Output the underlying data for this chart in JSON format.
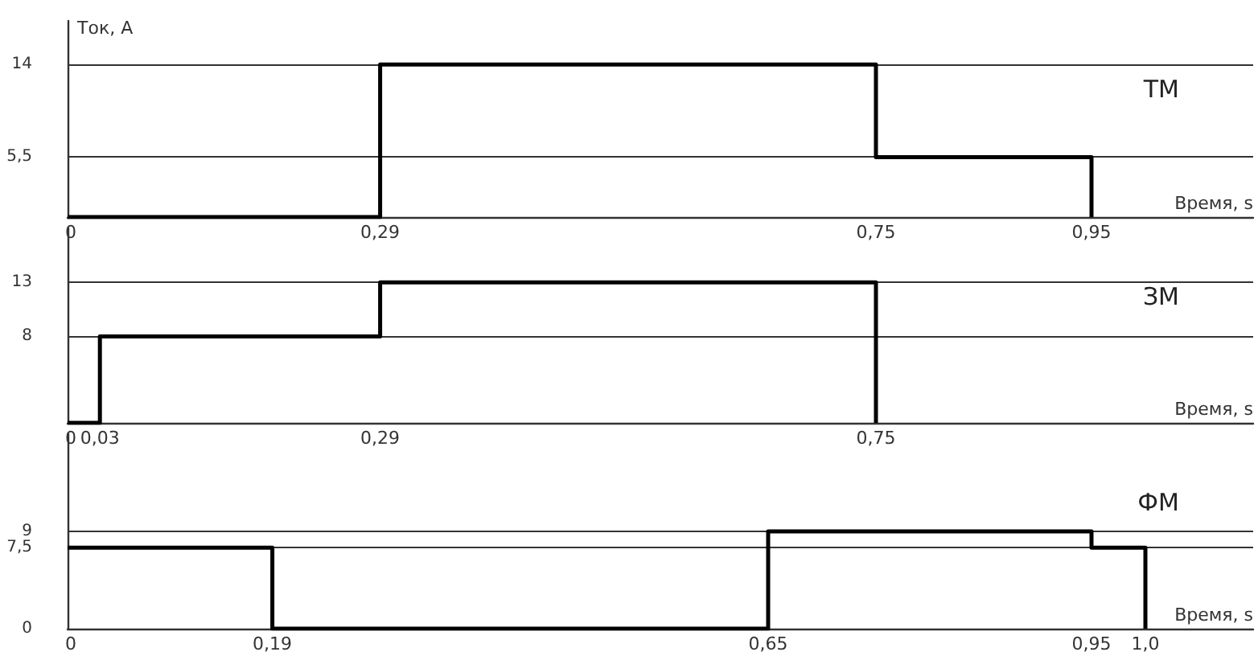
{
  "chart_data": [
    {
      "type": "step",
      "title": "ТМ",
      "ylabel": "Ток, А",
      "xlabel": "Время, s",
      "grid": "y",
      "marker": "none",
      "line_style": "solid",
      "x": [
        0,
        0.29,
        0.75,
        0.95
      ],
      "series": [
        {
          "color": "#000000",
          "values": [
            0,
            14,
            5.5,
            0
          ]
        }
      ],
      "xlim": [
        0,
        1.1
      ],
      "xticks": [
        {
          "value": 0,
          "label": "0"
        },
        {
          "value": 0.29,
          "label": "0,29"
        },
        {
          "value": 0.75,
          "label": "0,75"
        },
        {
          "value": 0.95,
          "label": "0,95"
        }
      ],
      "ylim": [
        0,
        18
      ],
      "yticks": [
        {
          "value": 5.5,
          "label": "5,5"
        },
        14
      ]
    },
    {
      "type": "step",
      "title": "ЗМ",
      "xlabel": "Время, s",
      "grid": "y",
      "marker": "none",
      "line_style": "solid",
      "x": [
        0,
        0.03,
        0.29,
        0.75
      ],
      "series": [
        {
          "color": "#000000",
          "values": [
            0,
            8,
            13,
            0
          ]
        }
      ],
      "xlim": [
        0,
        1.1
      ],
      "xticks": [
        {
          "value": 0,
          "label": "0"
        },
        {
          "value": 0.03,
          "label": "0,03"
        },
        {
          "value": 0.29,
          "label": "0,29"
        },
        {
          "value": 0.75,
          "label": "0,75"
        }
      ],
      "ylim": [
        0,
        18
      ],
      "yticks": [
        8,
        13
      ]
    },
    {
      "type": "step",
      "title": "ФМ",
      "xlabel": "Время, s",
      "grid": "y",
      "marker": "none",
      "line_style": "solid",
      "x": [
        0,
        0.19,
        0.65,
        0.95,
        1.0
      ],
      "series": [
        {
          "color": "#000000",
          "values": [
            7.5,
            0,
            9,
            7.5,
            0
          ]
        }
      ],
      "xlim": [
        0,
        1.1
      ],
      "xticks": [
        {
          "value": 0,
          "label": "0"
        },
        {
          "value": 0.19,
          "label": "0,19"
        },
        {
          "value": 0.65,
          "label": "0,65"
        },
        {
          "value": 0.95,
          "label": "0,95"
        },
        {
          "value": 1.0,
          "label": "1,0"
        }
      ],
      "ylim": [
        0,
        18
      ],
      "yticks": [
        0,
        {
          "value": 7.5,
          "label": "7,5"
        },
        9
      ]
    }
  ]
}
